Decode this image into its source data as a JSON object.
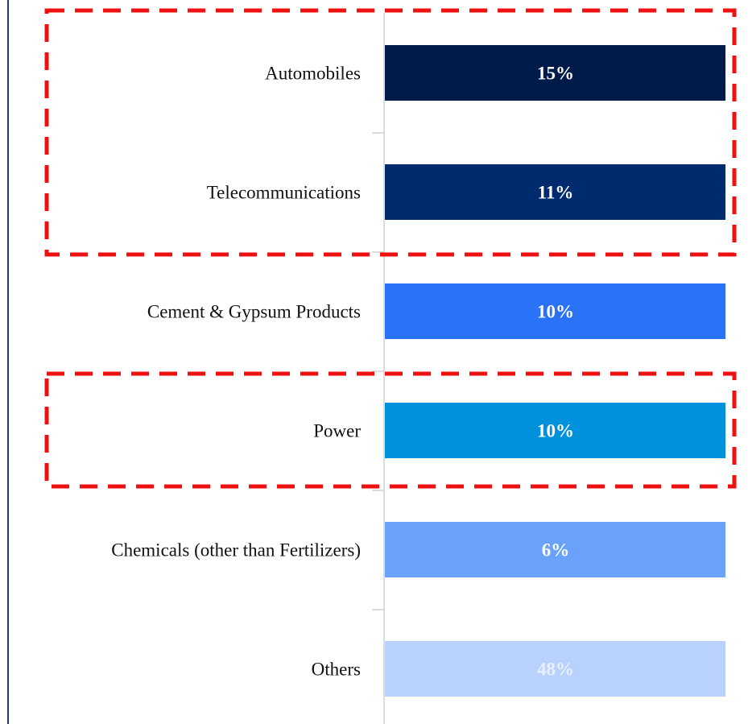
{
  "items": [
    {
      "label": "Automobiles",
      "value": "15%",
      "color": "#001a4a",
      "text_color": "#ffffff"
    },
    {
      "label": "Telecommunications",
      "value": "11%",
      "color": "#002a6e",
      "text_color": "#ffffff"
    },
    {
      "label": "Cement & Gypsum Products",
      "value": "10%",
      "color": "#2a72f8",
      "text_color": "#ffffff"
    },
    {
      "label": "Power",
      "value": "10%",
      "color": "#0091dc",
      "text_color": "#ffffff"
    },
    {
      "label": "Chemicals (other than Fertilizers)",
      "value": "6%",
      "color": "#6aa2fb",
      "text_color": "#ffffff"
    },
    {
      "label": "Others",
      "value": "48%",
      "color": "#b8d2fd",
      "text_color": "#e8f0fe"
    }
  ]
}
